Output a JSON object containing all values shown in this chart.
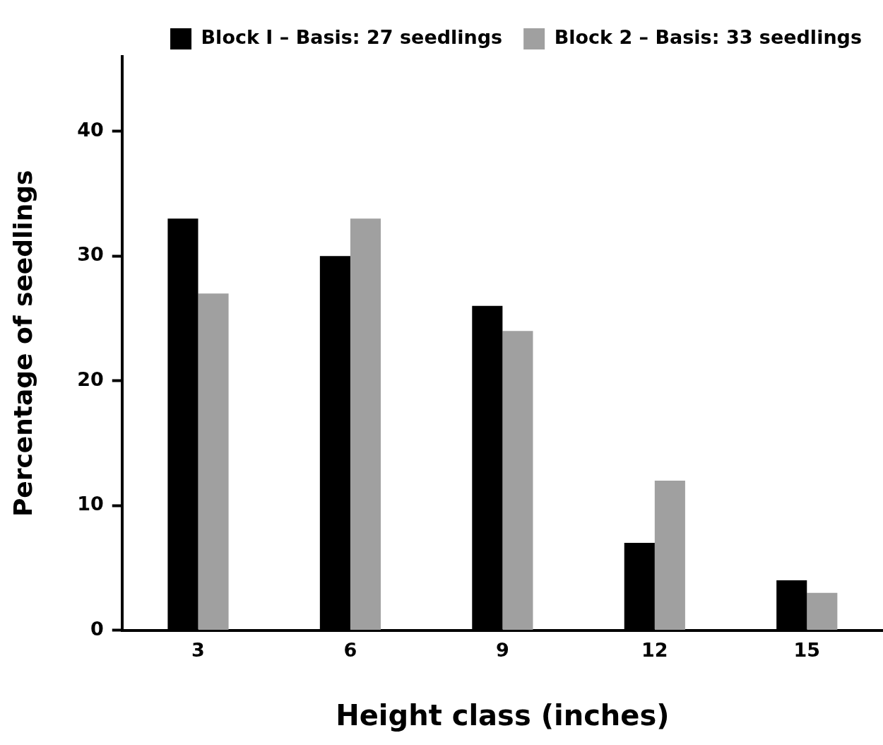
{
  "chart_data": {
    "type": "bar",
    "xlabel": "Height class (inches)",
    "ylabel": "Percentage of seedlings",
    "categories": [
      "3",
      "6",
      "9",
      "12",
      "15"
    ],
    "series": [
      {
        "name": "Block I – Basis: 27 seedlings",
        "color": "#000000",
        "values": [
          33,
          30,
          26,
          7,
          4
        ]
      },
      {
        "name": "Block 2 – Basis: 33 seedlings",
        "color": "#a0a0a0",
        "values": [
          27,
          33,
          24,
          12,
          3
        ]
      }
    ],
    "ylim": [
      0,
      46
    ],
    "yticks": [
      0,
      10,
      20,
      30,
      40
    ],
    "grid": false,
    "legend": "top right"
  }
}
